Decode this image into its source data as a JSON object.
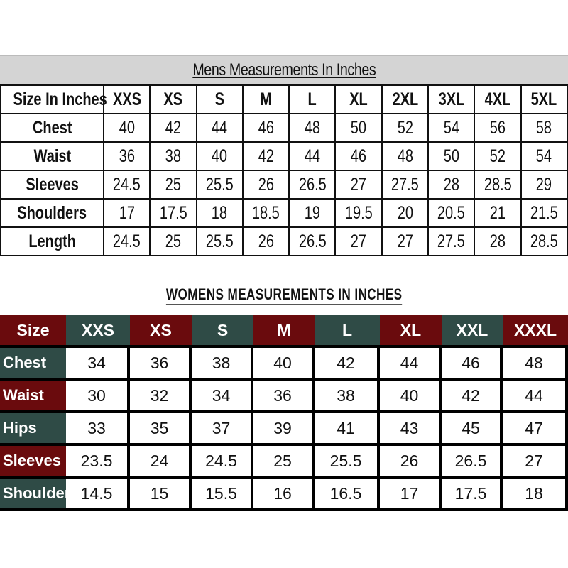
{
  "colors": {
    "red": "#6a0b0d",
    "green": "#2f4b46",
    "title_bar": "#d4d4d4"
  },
  "mens": {
    "title": "Mens Measurements In Inches",
    "header": [
      "Size In Inches",
      "XXS",
      "XS",
      "S",
      "M",
      "L",
      "XL",
      "2XL",
      "3XL",
      "4XL",
      "5XL"
    ],
    "rows": [
      [
        "Chest",
        "40",
        "42",
        "44",
        "46",
        "48",
        "50",
        "52",
        "54",
        "56",
        "58"
      ],
      [
        "Waist",
        "36",
        "38",
        "40",
        "42",
        "44",
        "46",
        "48",
        "50",
        "52",
        "54"
      ],
      [
        "Sleeves",
        "24.5",
        "25",
        "25.5",
        "26",
        "26.5",
        "27",
        "27.5",
        "28",
        "28.5",
        "29"
      ],
      [
        "Shoulders",
        "17",
        "17.5",
        "18",
        "18.5",
        "19",
        "19.5",
        "20",
        "20.5",
        "21",
        "21.5"
      ],
      [
        "Length",
        "24.5",
        "25",
        "25.5",
        "26",
        "26.5",
        "27",
        "27",
        "27.5",
        "28",
        "28.5"
      ]
    ]
  },
  "womens": {
    "title": "WOMENS MEASUREMENTS IN INCHES",
    "header": [
      "Size",
      "XXS",
      "XS",
      "S",
      "M",
      "L",
      "XL",
      "XXL",
      "XXXL"
    ],
    "rows": [
      [
        "Chest",
        "34",
        "36",
        "38",
        "40",
        "42",
        "44",
        "46",
        "48"
      ],
      [
        "Waist",
        "30",
        "32",
        "34",
        "36",
        "38",
        "40",
        "42",
        "44"
      ],
      [
        "Hips",
        "33",
        "35",
        "37",
        "39",
        "41",
        "43",
        "45",
        "47"
      ],
      [
        "Sleeves",
        "23.5",
        "24",
        "24.5",
        "25",
        "25.5",
        "26",
        "26.5",
        "27"
      ],
      [
        "Shoulders",
        "14.5",
        "15",
        "15.5",
        "16",
        "16.5",
        "17",
        "17.5",
        "18"
      ]
    ]
  }
}
